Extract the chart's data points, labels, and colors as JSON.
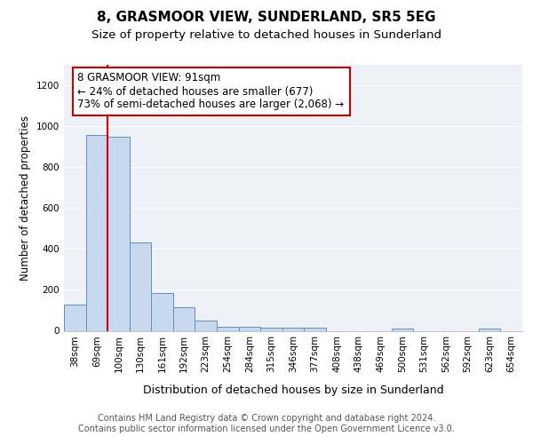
{
  "title": "8, GRASMOOR VIEW, SUNDERLAND, SR5 5EG",
  "subtitle": "Size of property relative to detached houses in Sunderland",
  "xlabel": "Distribution of detached houses by size in Sunderland",
  "ylabel": "Number of detached properties",
  "categories": [
    "38sqm",
    "69sqm",
    "100sqm",
    "130sqm",
    "161sqm",
    "192sqm",
    "223sqm",
    "254sqm",
    "284sqm",
    "315sqm",
    "346sqm",
    "377sqm",
    "408sqm",
    "438sqm",
    "469sqm",
    "500sqm",
    "531sqm",
    "562sqm",
    "592sqm",
    "623sqm",
    "654sqm"
  ],
  "values": [
    130,
    955,
    945,
    430,
    185,
    115,
    48,
    20,
    18,
    14,
    14,
    14,
    0,
    0,
    0,
    10,
    0,
    0,
    0,
    10,
    0
  ],
  "bar_color": "#c8d8ee",
  "bar_edge_color": "#6090c0",
  "annotation_box_text": "8 GRASMOOR VIEW: 91sqm\n← 24% of detached houses are smaller (677)\n73% of semi-detached houses are larger (2,068) →",
  "annotation_box_color": "#ffffff",
  "annotation_box_edge_color": "#cc0000",
  "vline_x": 1.5,
  "vline_color": "#cc0000",
  "ylim": [
    0,
    1300
  ],
  "yticks": [
    0,
    200,
    400,
    600,
    800,
    1000,
    1200
  ],
  "footer_line1": "Contains HM Land Registry data © Crown copyright and database right 2024.",
  "footer_line2": "Contains public sector information licensed under the Open Government Licence v3.0.",
  "plot_bg_color": "#eef2f8",
  "grid_color": "#ffffff",
  "title_fontsize": 11,
  "subtitle_fontsize": 9.5,
  "ylabel_fontsize": 8.5,
  "xlabel_fontsize": 9,
  "tick_fontsize": 7.5,
  "annotation_fontsize": 8.5,
  "footer_fontsize": 7
}
